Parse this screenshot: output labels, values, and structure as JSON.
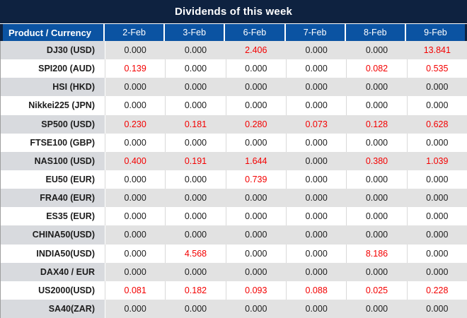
{
  "chart_data": {
    "type": "table",
    "title": "Dividends of this week",
    "columns": [
      "Product / Currency",
      "2-Feb",
      "3-Feb",
      "6-Feb",
      "7-Feb",
      "8-Feb",
      "9-Feb"
    ],
    "rows": [
      {
        "product": "DJ30 (USD)",
        "values": [
          "0.000",
          "0.000",
          "2.406",
          "0.000",
          "0.000",
          "13.841"
        ],
        "red": [
          false,
          false,
          true,
          false,
          false,
          true
        ]
      },
      {
        "product": "SPI200 (AUD)",
        "values": [
          "0.139",
          "0.000",
          "0.000",
          "0.000",
          "0.082",
          "0.535"
        ],
        "red": [
          true,
          false,
          false,
          false,
          true,
          true
        ]
      },
      {
        "product": "HSI (HKD)",
        "values": [
          "0.000",
          "0.000",
          "0.000",
          "0.000",
          "0.000",
          "0.000"
        ],
        "red": [
          false,
          false,
          false,
          false,
          false,
          false
        ]
      },
      {
        "product": "Nikkei225 (JPN)",
        "values": [
          "0.000",
          "0.000",
          "0.000",
          "0.000",
          "0.000",
          "0.000"
        ],
        "red": [
          false,
          false,
          false,
          false,
          false,
          false
        ]
      },
      {
        "product": "SP500 (USD)",
        "values": [
          "0.230",
          "0.181",
          "0.280",
          "0.073",
          "0.128",
          "0.628"
        ],
        "red": [
          true,
          true,
          true,
          true,
          true,
          true
        ]
      },
      {
        "product": "FTSE100 (GBP)",
        "values": [
          "0.000",
          "0.000",
          "0.000",
          "0.000",
          "0.000",
          "0.000"
        ],
        "red": [
          false,
          false,
          false,
          false,
          false,
          false
        ]
      },
      {
        "product": "NAS100 (USD)",
        "values": [
          "0.400",
          "0.191",
          "1.644",
          "0.000",
          "0.380",
          "1.039"
        ],
        "red": [
          true,
          true,
          true,
          false,
          true,
          true
        ]
      },
      {
        "product": "EU50 (EUR)",
        "values": [
          "0.000",
          "0.000",
          "0.739",
          "0.000",
          "0.000",
          "0.000"
        ],
        "red": [
          false,
          false,
          true,
          false,
          false,
          false
        ]
      },
      {
        "product": "FRA40 (EUR)",
        "values": [
          "0.000",
          "0.000",
          "0.000",
          "0.000",
          "0.000",
          "0.000"
        ],
        "red": [
          false,
          false,
          false,
          false,
          false,
          false
        ]
      },
      {
        "product": "ES35 (EUR)",
        "values": [
          "0.000",
          "0.000",
          "0.000",
          "0.000",
          "0.000",
          "0.000"
        ],
        "red": [
          false,
          false,
          false,
          false,
          false,
          false
        ]
      },
      {
        "product": "CHINA50(USD)",
        "values": [
          "0.000",
          "0.000",
          "0.000",
          "0.000",
          "0.000",
          "0.000"
        ],
        "red": [
          false,
          false,
          false,
          false,
          false,
          false
        ]
      },
      {
        "product": "INDIA50(USD)",
        "values": [
          "0.000",
          "4.568",
          "0.000",
          "0.000",
          "8.186",
          "0.000"
        ],
        "red": [
          false,
          true,
          false,
          false,
          true,
          false
        ]
      },
      {
        "product": "DAX40 / EUR",
        "values": [
          "0.000",
          "0.000",
          "0.000",
          "0.000",
          "0.000",
          "0.000"
        ],
        "red": [
          false,
          false,
          false,
          false,
          false,
          false
        ]
      },
      {
        "product": "US2000(USD)",
        "values": [
          "0.081",
          "0.182",
          "0.093",
          "0.088",
          "0.025",
          "0.228"
        ],
        "red": [
          true,
          true,
          true,
          true,
          true,
          true
        ]
      },
      {
        "product": "SA40(ZAR)",
        "values": [
          "0.000",
          "0.000",
          "0.000",
          "0.000",
          "0.000",
          "0.000"
        ],
        "red": [
          false,
          false,
          false,
          false,
          false,
          false
        ]
      }
    ],
    "layout": {
      "striped": true,
      "stripe_pattern": "odd-rows-gray",
      "value_alignment": "center",
      "product_alignment": "right"
    },
    "colors": {
      "title_bg": "#0e2240",
      "header_bg": "#0b53a2",
      "header_text": "#ffffff",
      "gray_row_product_bg": "#d8dade",
      "gray_row_value_bg": "#e2e2e2",
      "white_row_bg": "#ffffff",
      "value_text": "#1c1c1c",
      "value_highlight": "#f40000"
    }
  }
}
